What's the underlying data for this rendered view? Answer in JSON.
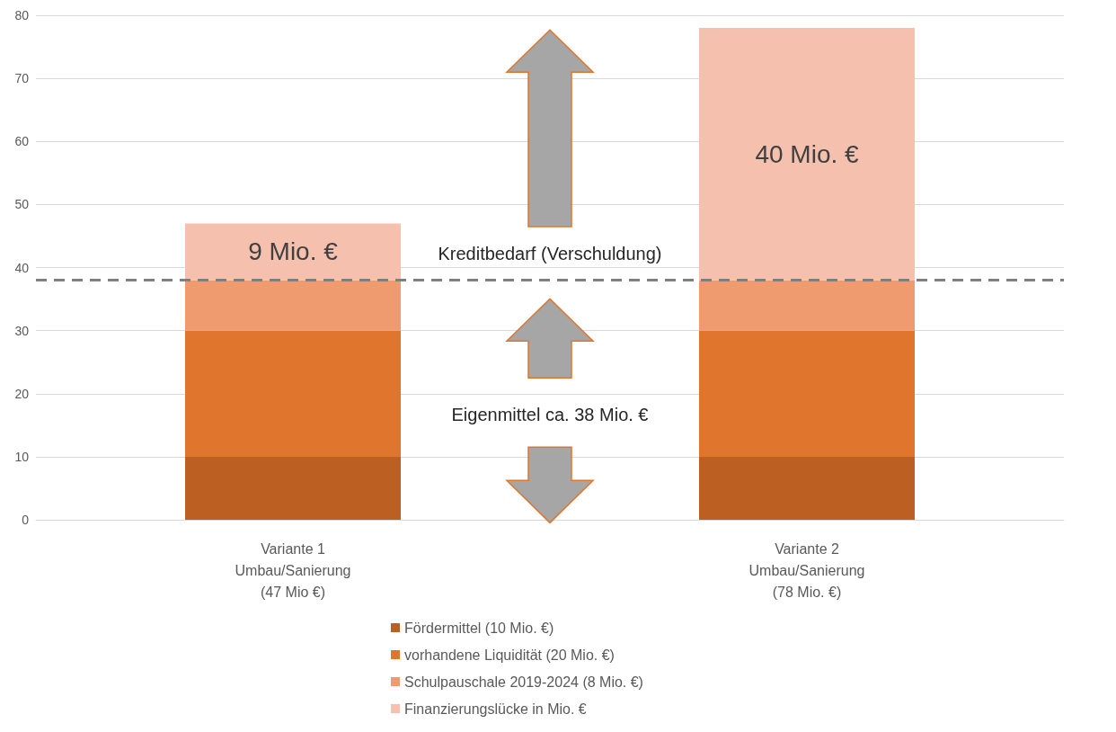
{
  "chart_data": {
    "type": "bar",
    "stacked": true,
    "categories": [
      "Variante 1\nUmbau/Sanierung\n(47 Mio €)",
      "Variante 2\nUmbau/Sanierung\n(78 Mio. €)"
    ],
    "series": [
      {
        "name": "Fördermittel (10 Mio. €)",
        "color": "#bc5f22",
        "values": [
          10,
          10
        ]
      },
      {
        "name": "vorhandene Liquidität (20 Mio. €)",
        "color": "#e0752d",
        "values": [
          20,
          20
        ]
      },
      {
        "name": "Schulpauschale 2019-2024 (8 Mio. €)",
        "color": "#f09a6f",
        "values": [
          8,
          8
        ]
      },
      {
        "name": "Finanzierungslücke in Mio. €",
        "color": "#f5c1ae",
        "values": [
          9,
          40
        ],
        "value_labels": [
          "9 Mio. €",
          "40 Mio. €"
        ]
      }
    ],
    "ylim": [
      0,
      80
    ],
    "yticks": [
      0,
      10,
      20,
      30,
      40,
      50,
      60,
      70,
      80
    ],
    "grid": "y",
    "legend": "bottom",
    "ref_lines": [
      {
        "axis": "y",
        "value": 38,
        "color": "#7f7f7f",
        "line_style": "dashed"
      }
    ],
    "annotations": [
      "Kreditbedarf (Verschuldung)",
      "Eigenmittel ca. 38 Mio. €"
    ]
  }
}
